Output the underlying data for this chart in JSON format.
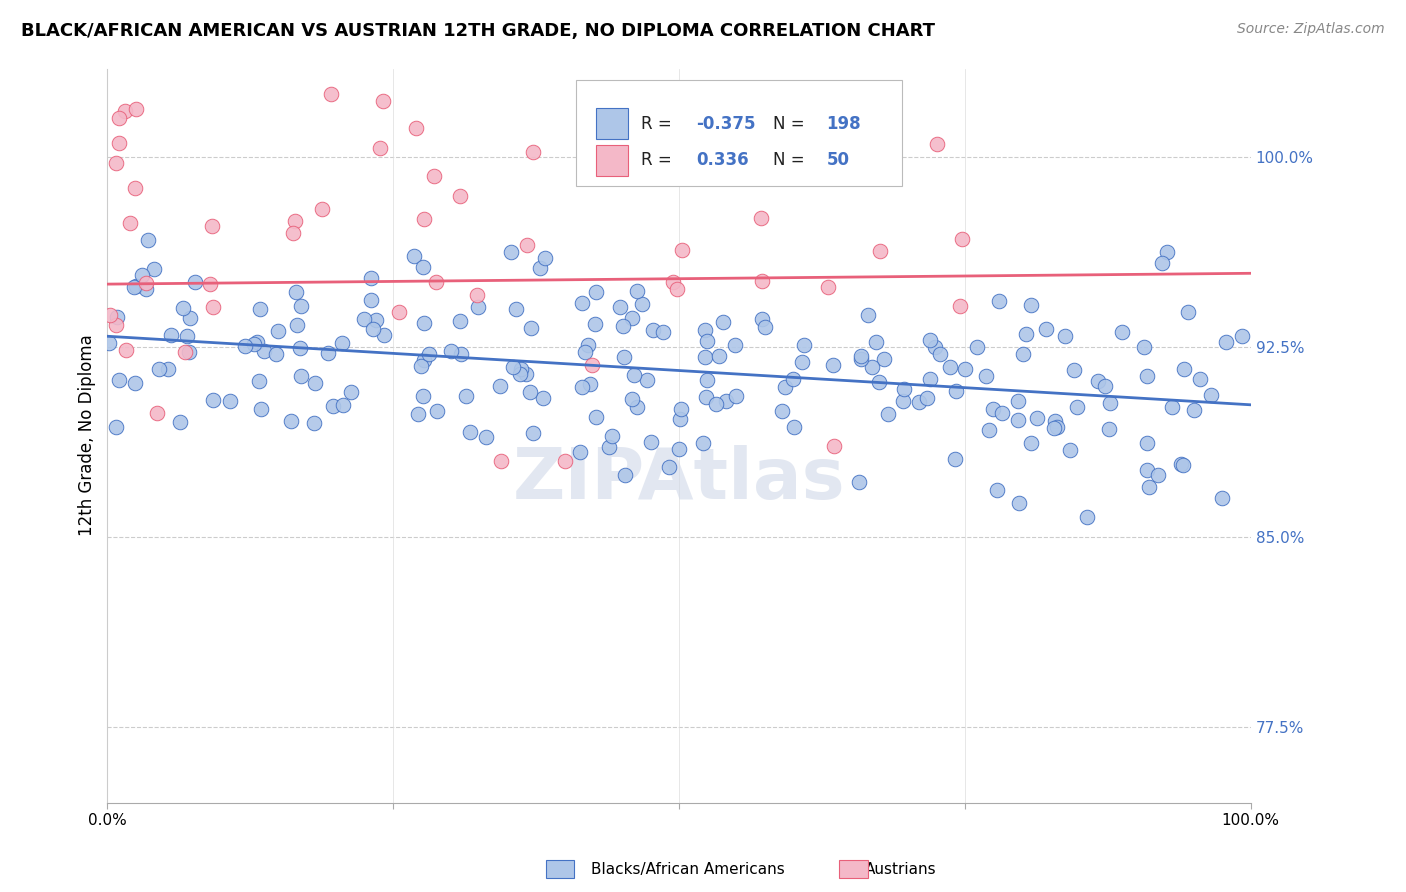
{
  "title": "BLACK/AFRICAN AMERICAN VS AUSTRIAN 12TH GRADE, NO DIPLOMA CORRELATION CHART",
  "source": "Source: ZipAtlas.com",
  "ylabel": "12th Grade, No Diploma",
  "watermark": "ZIPAtlas",
  "blue_scatter_color": "#aec6e8",
  "blue_line_color": "#4472c4",
  "pink_scatter_color": "#f4b8c8",
  "pink_line_color": "#e8607a",
  "ytick_labels": [
    "100.0%",
    "92.5%",
    "85.0%",
    "77.5%"
  ],
  "ytick_values": [
    1.0,
    0.925,
    0.85,
    0.775
  ],
  "xlim": [
    0.0,
    1.0
  ],
  "ylim": [
    0.745,
    1.035
  ],
  "blue_R": -0.375,
  "blue_N": 198,
  "pink_R": 0.336,
  "pink_N": 50,
  "title_fontsize": 13,
  "source_fontsize": 10,
  "legend_R_blue": "-0.375",
  "legend_N_blue": "198",
  "legend_R_pink": "0.336",
  "legend_N_pink": "50"
}
